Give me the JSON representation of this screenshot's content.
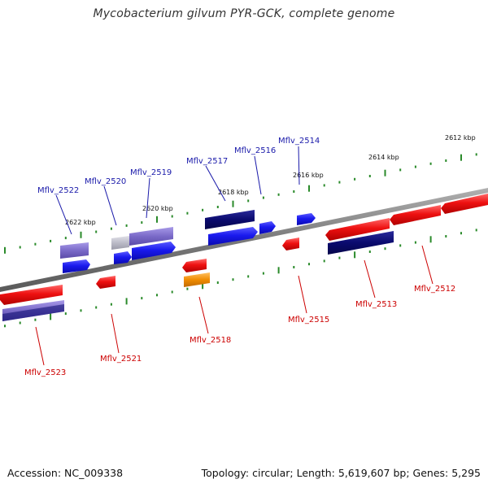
{
  "title": "Mycobacterium gilvum PYR-GCK, complete genome",
  "footer": {
    "accession": "Accession: NC_009338",
    "topology": "Topology: circular; Length: 5,619,607 bp; Genes: 5,295"
  },
  "colors": {
    "backbone": "#888888",
    "tick": "#2a8a2a",
    "forward_label": "#1a1aaa",
    "reverse_label": "#cc0000",
    "forward_gene_bright": "#1a1aee",
    "forward_gene_dark": "#0a0a6e",
    "forward_gene_light": "#7a6ac8",
    "forward_gene_grey": "#b8b8c8",
    "reverse_gene": "#ee1111",
    "reverse_gene_orange": "#f08c00"
  },
  "scale_labels": [
    "2612 kbp",
    "2614 kbp",
    "2616 kbp",
    "2618 kbp",
    "2620 kbp",
    "2622 kbp"
  ],
  "forward_gene_labels": [
    "Mflv_2522",
    "Mflv_2520",
    "Mflv_2519",
    "Mflv_2517",
    "Mflv_2516",
    "Mflv_2514"
  ],
  "reverse_gene_labels": [
    "Mflv_2523",
    "Mflv_2521",
    "Mflv_2518",
    "Mflv_2515",
    "Mflv_2513",
    "Mflv_2512"
  ]
}
